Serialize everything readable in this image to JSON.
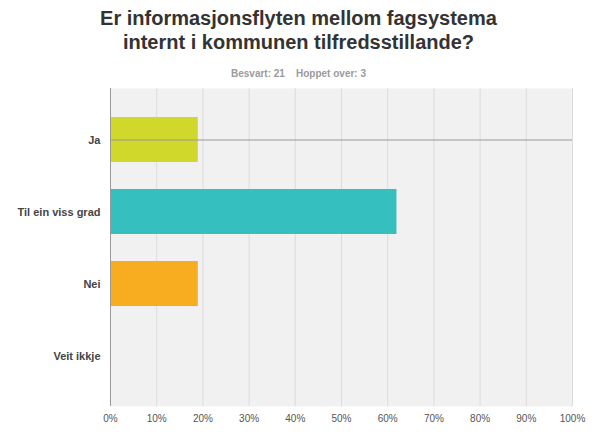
{
  "chart_data": {
    "type": "bar",
    "orientation": "horizontal",
    "title": "Er informasjonsflyten mellom fagsystema internt i kommunen tilfredsstillande?",
    "subtitle": "Besvart: 21    Hoppet over: 3",
    "categories": [
      "Ja",
      "Til ein viss grad",
      "Nei",
      "Veit ikkje"
    ],
    "values": [
      19,
      62,
      19,
      0
    ],
    "colors": [
      "#d1d82c",
      "#36bfbf",
      "#f7ad1f",
      "#9b59b6"
    ],
    "xlim": [
      0,
      100
    ],
    "xticks": [
      {
        "value": 0,
        "label": "0%"
      },
      {
        "value": 10,
        "label": "10%"
      },
      {
        "value": 20,
        "label": "20%"
      },
      {
        "value": 30,
        "label": "30%"
      },
      {
        "value": 40,
        "label": "40%"
      },
      {
        "value": 50,
        "label": "50%"
      },
      {
        "value": 60,
        "label": "60%"
      },
      {
        "value": 70,
        "label": "70%"
      },
      {
        "value": 80,
        "label": "80%"
      },
      {
        "value": 90,
        "label": "90%"
      },
      {
        "value": 100,
        "label": "100%"
      }
    ],
    "grid": true
  }
}
